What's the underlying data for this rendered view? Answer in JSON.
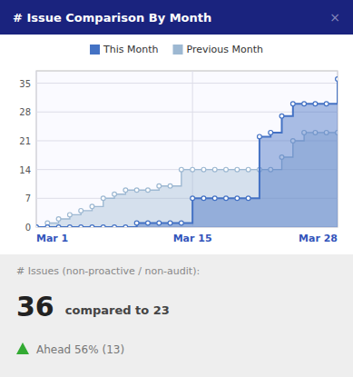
{
  "chart_data": {
    "type": "step",
    "title": "# Issue Comparison By Month",
    "x": [
      1,
      2,
      3,
      4,
      5,
      6,
      7,
      8,
      9,
      10,
      11,
      12,
      13,
      14,
      15,
      16,
      17,
      18,
      19,
      20,
      21,
      22,
      23,
      24,
      25,
      26,
      27,
      28
    ],
    "series": [
      {
        "name": "This Month",
        "color": "#4472c4",
        "values": [
          0,
          0,
          0,
          0,
          0,
          0,
          0,
          0,
          0,
          1,
          1,
          1,
          1,
          1,
          7,
          7,
          7,
          7,
          7,
          7,
          22,
          23,
          27,
          30,
          30,
          30,
          30,
          36
        ]
      },
      {
        "name": "Previous Month",
        "color": "#9db8d2",
        "values": [
          0,
          1,
          2,
          3,
          4,
          5,
          7,
          8,
          9,
          9,
          9,
          10,
          10,
          14,
          14,
          14,
          14,
          14,
          14,
          14,
          14,
          14,
          17,
          21,
          23,
          23,
          23,
          23
        ]
      }
    ],
    "xlim": [
      1,
      28
    ],
    "xticks": [
      {
        "value": 1,
        "label": "Mar 1"
      },
      {
        "value": 15,
        "label": "Mar 15"
      },
      {
        "value": 28,
        "label": "Mar 28"
      }
    ],
    "ylim": [
      0,
      38
    ],
    "yticks": [
      0,
      7,
      14,
      21,
      28,
      35
    ],
    "grid": true,
    "legend": "top",
    "marker": "circle",
    "annotations": [
      "×",
      "# Issues (non-proactive / non-audit):",
      "36",
      "compared to 23",
      "Ahead 56% (13)"
    ]
  }
}
